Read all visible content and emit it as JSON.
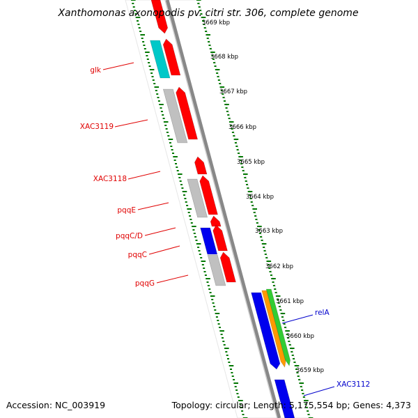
{
  "title": "Xanthomonas axonopodis pv. citri str. 306, complete genome",
  "footer": {
    "accession": "Accession: NC_003919",
    "summary": "Topology: circular; Length: 5,175,554 bp; Genes: 4,373"
  },
  "ruler_labels": [
    "3669 kbp",
    "3668 kbp",
    "3667 kbp",
    "3666 kbp",
    "3665 kbp",
    "3664 kbp",
    "3663 kbp",
    "3662 kbp",
    "3661 kbp",
    "3660 kbp",
    "3659 kbp"
  ],
  "gene_labels": [
    {
      "text": "glk",
      "color": "#e00000"
    },
    {
      "text": "XAC3119",
      "color": "#e00000"
    },
    {
      "text": "XAC3118",
      "color": "#e00000"
    },
    {
      "text": "pqqE",
      "color": "#e00000"
    },
    {
      "text": "pqqC/D",
      "color": "#e00000"
    },
    {
      "text": "pqqC",
      "color": "#e00000"
    },
    {
      "text": "pqqG",
      "color": "#e00000"
    },
    {
      "text": "relA",
      "color": "#0000cc"
    },
    {
      "text": "XAC3112",
      "color": "#0000cc"
    }
  ],
  "colors": {
    "red": "#ff0000",
    "grey": "#c0c0c0",
    "cyan": "#00c8c8",
    "blue": "#0000ee",
    "orange": "#ff9900",
    "green": "#33cc33",
    "tick_green": "#007700",
    "backbone": "#888888"
  }
}
